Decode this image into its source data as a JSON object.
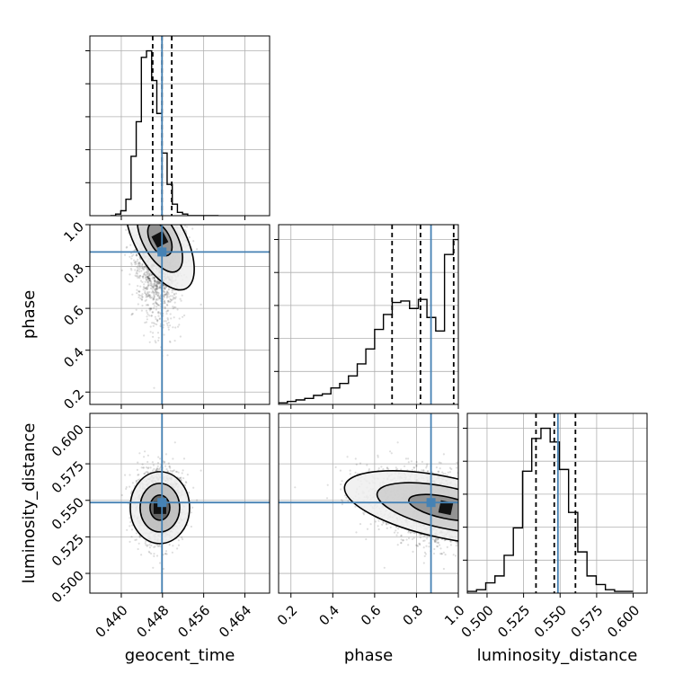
{
  "chart_data": {
    "type": "corner",
    "title": "",
    "parameters": [
      "geocent_time",
      "phase",
      "luminosity_distance"
    ],
    "axis_labels": {
      "geocent_time": "geocent_time",
      "phase": "phase",
      "luminosity_distance": "luminosity_distance"
    },
    "ranges": {
      "geocent_time": [
        0.4339,
        0.4688
      ],
      "phase": [
        0.141,
        1.0
      ],
      "luminosity_distance": [
        0.4865,
        0.6095
      ]
    },
    "ticks": {
      "geocent_time": [
        "0.440",
        "0.448",
        "0.456",
        "0.464"
      ],
      "phase": [
        "0.2",
        "0.4",
        "0.6",
        "0.8",
        "1.0"
      ],
      "luminosity_distance": [
        "0.500",
        "0.525",
        "0.550",
        "0.575",
        "0.600"
      ]
    },
    "truths": {
      "geocent_time": 0.4479,
      "phase": 0.8694,
      "luminosity_distance": 0.5485
    },
    "truth_color": "#4682b4",
    "quantiles": {
      "geocent_time": [
        0.4461,
        0.4479,
        0.4498
      ],
      "phase": [
        0.6834,
        0.8191,
        0.9778
      ],
      "luminosity_distance": [
        0.5335,
        0.546,
        0.5605
      ]
    },
    "histograms": {
      "geocent_time": {
        "edges": [
          0.4379,
          0.4389,
          0.4399,
          0.4409,
          0.4419,
          0.4429,
          0.4439,
          0.4449,
          0.4459,
          0.4469,
          0.4479,
          0.4489,
          0.4499,
          0.4509,
          0.4519,
          0.4529,
          0.4539,
          0.4549,
          0.4559,
          0.4569,
          0.4579,
          0.4589
        ],
        "counts": [
          0,
          1,
          3,
          10,
          36,
          57,
          96,
          100,
          82,
          62,
          38,
          19,
          7,
          2,
          1,
          0,
          0,
          0,
          0,
          0,
          0
        ]
      },
      "phase": {
        "edges": [
          0.141,
          0.183,
          0.224,
          0.266,
          0.308,
          0.35,
          0.391,
          0.433,
          0.475,
          0.517,
          0.558,
          0.6,
          0.642,
          0.684,
          0.725,
          0.767,
          0.809,
          0.85,
          0.892,
          0.934,
          0.976,
          1.0
        ],
        "counts": [
          1,
          2,
          3,
          4,
          6,
          7,
          11,
          14,
          19,
          27,
          37,
          50,
          60,
          68,
          69,
          64,
          70,
          58,
          49,
          100,
          110
        ]
      },
      "luminosity_distance": {
        "edges": [
          0.4865,
          0.4928,
          0.4991,
          0.5054,
          0.5117,
          0.518,
          0.5243,
          0.5306,
          0.5369,
          0.5432,
          0.5495,
          0.5558,
          0.5621,
          0.5684,
          0.5747,
          0.581,
          0.5873,
          0.5936,
          0.5999
        ],
        "counts": [
          1,
          2,
          6,
          10,
          22,
          38,
          71,
          90,
          96,
          88,
          72,
          47,
          24,
          10,
          5,
          2,
          1,
          1
        ]
      }
    },
    "grid": true,
    "legend": "none"
  }
}
